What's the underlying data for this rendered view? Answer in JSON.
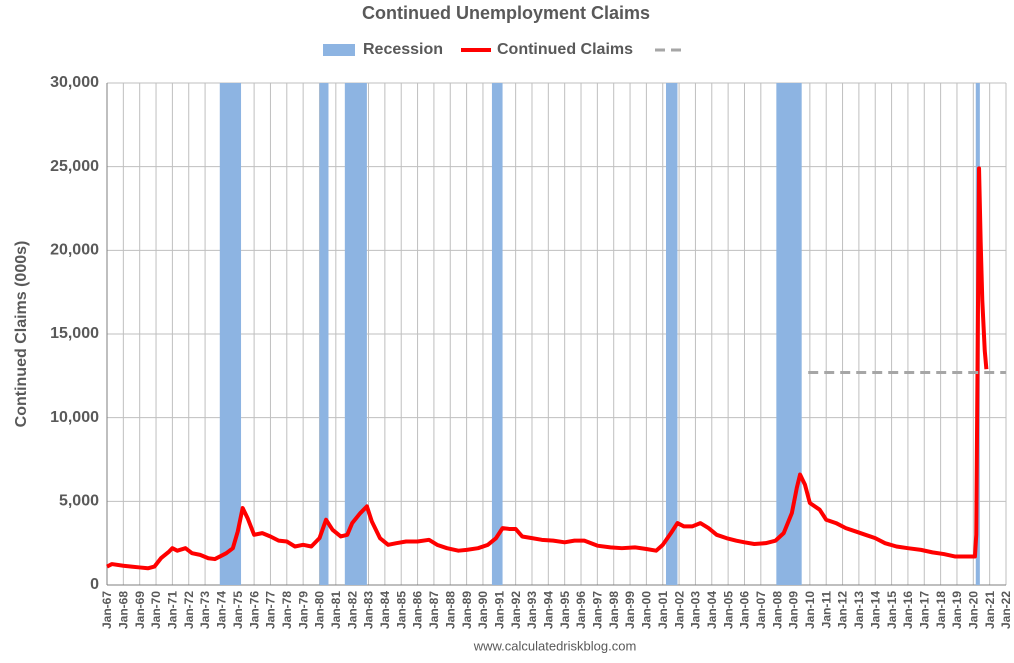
{
  "chart_data": {
    "type": "line",
    "title": "Continued Unemployment Claims",
    "y_label": "Continued Claims (000s)",
    "source": "www.calculatedriskblog.com",
    "xlim": [
      1967,
      2022
    ],
    "xticks": [
      {
        "value": 1967,
        "label": "Jan-67"
      },
      {
        "value": 1968,
        "label": "Jan-68"
      },
      {
        "value": 1969,
        "label": "Jan-69"
      },
      {
        "value": 1970,
        "label": "Jan-70"
      },
      {
        "value": 1971,
        "label": "Jan-71"
      },
      {
        "value": 1972,
        "label": "Jan-72"
      },
      {
        "value": 1973,
        "label": "Jan-73"
      },
      {
        "value": 1974,
        "label": "Jan-74"
      },
      {
        "value": 1975,
        "label": "Jan-75"
      },
      {
        "value": 1976,
        "label": "Jan-76"
      },
      {
        "value": 1977,
        "label": "Jan-77"
      },
      {
        "value": 1978,
        "label": "Jan-78"
      },
      {
        "value": 1979,
        "label": "Jan-79"
      },
      {
        "value": 1980,
        "label": "Jan-80"
      },
      {
        "value": 1981,
        "label": "Jan-81"
      },
      {
        "value": 1982,
        "label": "Jan-82"
      },
      {
        "value": 1983,
        "label": "Jan-83"
      },
      {
        "value": 1984,
        "label": "Jan-84"
      },
      {
        "value": 1985,
        "label": "Jan-85"
      },
      {
        "value": 1986,
        "label": "Jan-86"
      },
      {
        "value": 1987,
        "label": "Jan-87"
      },
      {
        "value": 1988,
        "label": "Jan-88"
      },
      {
        "value": 1989,
        "label": "Jan-89"
      },
      {
        "value": 1990,
        "label": "Jan-90"
      },
      {
        "value": 1991,
        "label": "Jan-91"
      },
      {
        "value": 1992,
        "label": "Jan-92"
      },
      {
        "value": 1993,
        "label": "Jan-93"
      },
      {
        "value": 1994,
        "label": "Jan-94"
      },
      {
        "value": 1995,
        "label": "Jan-95"
      },
      {
        "value": 1996,
        "label": "Jan-96"
      },
      {
        "value": 1997,
        "label": "Jan-97"
      },
      {
        "value": 1998,
        "label": "Jan-98"
      },
      {
        "value": 1999,
        "label": "Jan-99"
      },
      {
        "value": 2000,
        "label": "Jan-00"
      },
      {
        "value": 2001,
        "label": "Jan-01"
      },
      {
        "value": 2002,
        "label": "Jan-02"
      },
      {
        "value": 2003,
        "label": "Jan-03"
      },
      {
        "value": 2004,
        "label": "Jan-04"
      },
      {
        "value": 2005,
        "label": "Jan-05"
      },
      {
        "value": 2006,
        "label": "Jan-06"
      },
      {
        "value": 2007,
        "label": "Jan-07"
      },
      {
        "value": 2008,
        "label": "Jan-08"
      },
      {
        "value": 2009,
        "label": "Jan-09"
      },
      {
        "value": 2010,
        "label": "Jan-10"
      },
      {
        "value": 2011,
        "label": "Jan-11"
      },
      {
        "value": 2012,
        "label": "Jan-12"
      },
      {
        "value": 2013,
        "label": "Jan-13"
      },
      {
        "value": 2014,
        "label": "Jan-14"
      },
      {
        "value": 2015,
        "label": "Jan-15"
      },
      {
        "value": 2016,
        "label": "Jan-16"
      },
      {
        "value": 2017,
        "label": "Jan-17"
      },
      {
        "value": 2018,
        "label": "Jan-18"
      },
      {
        "value": 2019,
        "label": "Jan-19"
      },
      {
        "value": 2020,
        "label": "Jan-20"
      },
      {
        "value": 2021,
        "label": "Jan-21"
      },
      {
        "value": 2022,
        "label": "Jan-22"
      }
    ],
    "ylim": [
      0,
      30000
    ],
    "yticks": [
      0,
      {
        "value": 5000,
        "label": "5,000"
      },
      {
        "value": 10000,
        "label": "10,000"
      },
      {
        "value": 15000,
        "label": "15,000"
      },
      {
        "value": 20000,
        "label": "20,000"
      },
      {
        "value": 25000,
        "label": "25,000"
      },
      {
        "value": 30000,
        "label": "30,000"
      }
    ],
    "grid": true,
    "series": [
      {
        "name": "Recession",
        "color": "#8db4e2",
        "ranges": [
          [
            1973.9,
            1975.2
          ],
          [
            1980.0,
            1980.55
          ],
          [
            1981.55,
            1982.9
          ],
          [
            1990.55,
            1991.2
          ],
          [
            2001.2,
            2001.9
          ],
          [
            2007.95,
            2009.5
          ],
          [
            2020.15,
            2020.4
          ]
        ]
      },
      {
        "name": "Continued Claims",
        "color": "#ff0000",
        "x": [
          1967.0,
          1967.3,
          1968.0,
          1968.5,
          1969.0,
          1969.5,
          1969.9,
          1970.3,
          1970.8,
          1971.0,
          1971.3,
          1971.8,
          1972.2,
          1972.7,
          1973.2,
          1973.6,
          1973.9,
          1974.3,
          1974.7,
          1975.0,
          1975.3,
          1975.6,
          1976.0,
          1976.5,
          1977.0,
          1977.5,
          1978.0,
          1978.5,
          1979.0,
          1979.5,
          1980.0,
          1980.4,
          1980.8,
          1981.3,
          1981.7,
          1982.0,
          1982.5,
          1982.9,
          1983.2,
          1983.7,
          1984.2,
          1984.7,
          1985.3,
          1986.0,
          1986.7,
          1987.2,
          1987.8,
          1988.5,
          1989.0,
          1989.7,
          1990.3,
          1990.8,
          1991.2,
          1991.6,
          1992.0,
          1992.4,
          1993.0,
          1993.6,
          1994.3,
          1995.0,
          1995.6,
          1996.2,
          1997.0,
          1997.8,
          1998.5,
          1999.3,
          2000.0,
          2000.6,
          2001.0,
          2001.5,
          2001.9,
          2002.3,
          2002.8,
          2003.3,
          2003.8,
          2004.3,
          2004.9,
          2005.5,
          2006.0,
          2006.6,
          2007.3,
          2007.9,
          2008.4,
          2008.9,
          2009.2,
          2009.4,
          2009.7,
          2010.0,
          2010.6,
          2011.0,
          2011.6,
          2012.2,
          2012.8,
          2013.4,
          2014.0,
          2014.6,
          2015.3,
          2016.0,
          2016.8,
          2017.5,
          2018.2,
          2018.9,
          2019.5,
          2020.1,
          2020.18,
          2020.25,
          2020.35,
          2020.45,
          2020.55,
          2020.7,
          2020.8
        ],
        "values": [
          1100,
          1250,
          1150,
          1100,
          1050,
          1000,
          1100,
          1600,
          2000,
          2200,
          2050,
          2200,
          1900,
          1800,
          1600,
          1550,
          1700,
          1900,
          2200,
          3200,
          4600,
          4000,
          3000,
          3100,
          2900,
          2650,
          2600,
          2300,
          2400,
          2300,
          2800,
          3900,
          3300,
          2900,
          3000,
          3700,
          4300,
          4700,
          3800,
          2800,
          2400,
          2500,
          2600,
          2600,
          2700,
          2400,
          2200,
          2050,
          2100,
          2200,
          2400,
          2800,
          3400,
          3350,
          3350,
          2900,
          2800,
          2700,
          2650,
          2550,
          2650,
          2650,
          2350,
          2250,
          2200,
          2250,
          2150,
          2050,
          2400,
          3100,
          3700,
          3500,
          3500,
          3700,
          3400,
          3000,
          2800,
          2650,
          2550,
          2450,
          2500,
          2650,
          3100,
          4300,
          5800,
          6600,
          6000,
          4900,
          4500,
          3900,
          3700,
          3400,
          3200,
          3000,
          2800,
          2500,
          2300,
          2200,
          2100,
          1950,
          1850,
          1700,
          1700,
          1700,
          3000,
          12000,
          24900,
          20500,
          17000,
          14000,
          12900
        ]
      },
      {
        "color": "#a6a6a6",
        "dash": true,
        "x": [
          2009.9,
          2022
        ],
        "values": [
          12700,
          12700
        ]
      }
    ]
  }
}
